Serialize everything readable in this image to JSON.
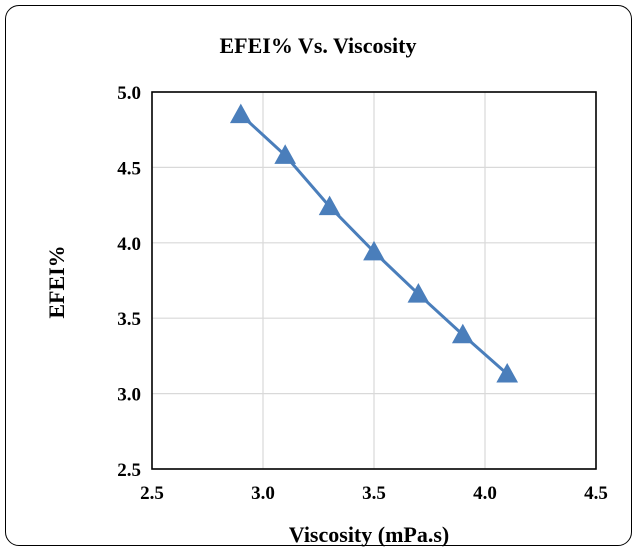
{
  "chart_data": {
    "type": "line",
    "title": "EFEI% Vs. Viscosity",
    "xlabel": "Viscosity (mPa.s)",
    "ylabel": "EFEI%",
    "xlim": [
      2.5,
      4.5
    ],
    "ylim": [
      2.5,
      5.0
    ],
    "x_ticks": [
      "2.5",
      "3.0",
      "3.5",
      "4.0",
      "4.5"
    ],
    "y_ticks": [
      "2.5",
      "3.0",
      "3.5",
      "4.0",
      "4.5",
      "5.0"
    ],
    "grid": true,
    "legend": false,
    "series": [
      {
        "marker": "triangle",
        "color": "#4a7ebb",
        "x": [
          2.9,
          3.1,
          3.3,
          3.5,
          3.7,
          3.9,
          4.1
        ],
        "y": [
          4.85,
          4.58,
          4.24,
          3.94,
          3.66,
          3.39,
          3.13
        ]
      }
    ]
  }
}
